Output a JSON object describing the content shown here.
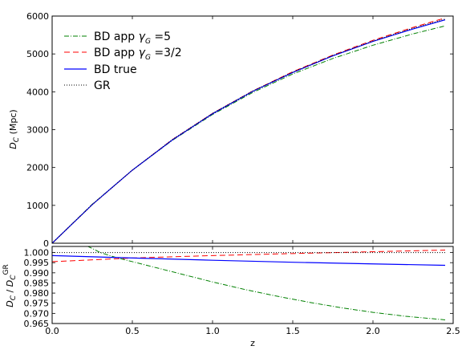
{
  "chart_data": [
    {
      "type": "line",
      "x_label": "z",
      "y_label": "D_C (Mpc)",
      "xlim": [
        0.0,
        2.5
      ],
      "ylim": [
        0,
        6000
      ],
      "x_ticks": [
        "0.0",
        "0.5",
        "1.0",
        "1.5",
        "2.0",
        "2.5"
      ],
      "y_ticks": [
        "0",
        "1000",
        "2000",
        "3000",
        "4000",
        "5000",
        "6000"
      ],
      "grid": false,
      "legend_position": "top-left",
      "x": [
        0.0,
        0.25,
        0.5,
        0.75,
        1.0,
        1.25,
        1.5,
        1.75,
        2.0,
        2.25,
        2.45
      ],
      "series": [
        {
          "name": "BD app γG =5",
          "style": "dash-dot",
          "color": "#008000",
          "values": [
            0,
            1030,
            1930,
            2720,
            3400,
            3980,
            4470,
            4880,
            5230,
            5530,
            5740
          ]
        },
        {
          "name": "BD app γG =3/2",
          "style": "dashed",
          "color": "#ff0000",
          "values": [
            0,
            1020,
            1930,
            2740,
            3430,
            4020,
            4530,
            4970,
            5360,
            5700,
            5950
          ]
        },
        {
          "name": "BD true",
          "style": "solid",
          "color": "#0000ff",
          "values": [
            0,
            1020,
            1930,
            2730,
            3420,
            4010,
            4510,
            4950,
            5330,
            5660,
            5900
          ]
        },
        {
          "name": "GR",
          "style": "dotted",
          "color": "#000000",
          "values": [
            0,
            1020,
            1930,
            2740,
            3430,
            4020,
            4520,
            4960,
            5340,
            5680,
            5920
          ]
        }
      ]
    },
    {
      "type": "line",
      "x_label": "z",
      "y_label": "D_C / D_C^GR",
      "xlim": [
        0.0,
        2.5
      ],
      "ylim": [
        0.965,
        1.003
      ],
      "x_ticks": [
        "0.0",
        "0.5",
        "1.0",
        "1.5",
        "2.0",
        "2.5"
      ],
      "y_ticks": [
        "0.965",
        "0.970",
        "0.975",
        "0.980",
        "0.985",
        "0.990",
        "0.995",
        "1.000"
      ],
      "grid": false,
      "series": [
        {
          "name": "BD app γG =5",
          "style": "dash-dot",
          "color": "#008000",
          "x": [
            0.17,
            0.25,
            0.3,
            0.4,
            0.5,
            0.6,
            0.7,
            0.8,
            0.9,
            1.0,
            1.2,
            1.4,
            1.6,
            1.8,
            2.0,
            2.2,
            2.45
          ],
          "values": [
            1.005,
            1.002,
            1.0,
            0.9975,
            0.9955,
            0.9935,
            0.9915,
            0.9895,
            0.9875,
            0.9855,
            0.9818,
            0.9785,
            0.9755,
            0.9728,
            0.9705,
            0.9686,
            0.9668
          ]
        },
        {
          "name": "BD app γG =3/2",
          "style": "dashed",
          "color": "#ff0000",
          "x": [
            0.0,
            0.5,
            1.0,
            1.5,
            2.0,
            2.45
          ],
          "values": [
            0.9955,
            0.9973,
            0.9985,
            0.9995,
            1.0004,
            1.0012
          ]
        },
        {
          "name": "BD true",
          "style": "solid",
          "color": "#0000ff",
          "x": [
            0.0,
            0.5,
            1.0,
            1.5,
            2.0,
            2.45
          ],
          "values": [
            0.9985,
            0.9973,
            0.9962,
            0.9952,
            0.9944,
            0.9937
          ]
        },
        {
          "name": "GR",
          "style": "dotted",
          "color": "#000000",
          "x": [
            0.0,
            2.45
          ],
          "values": [
            1.0,
            1.0
          ]
        }
      ]
    }
  ],
  "legend": {
    "entries": [
      {
        "prefix": "BD app ",
        "gamma_sub": "G",
        "suffix": " =5"
      },
      {
        "prefix": "BD app ",
        "gamma_sub": "G",
        "suffix": " =3/2"
      },
      {
        "prefix": "BD true",
        "gamma_sub": "",
        "suffix": ""
      },
      {
        "prefix": "GR",
        "gamma_sub": "",
        "suffix": ""
      }
    ]
  },
  "labels": {
    "x_axis": "z",
    "top_y_main": "D",
    "top_y_sub": "C",
    "top_y_unit": " (Mpc)",
    "bottom_y_num": "D",
    "bottom_y_num_sub": "C",
    "bottom_y_den": "D",
    "bottom_y_den_sub": "C",
    "bottom_y_den_sup": "GR"
  }
}
